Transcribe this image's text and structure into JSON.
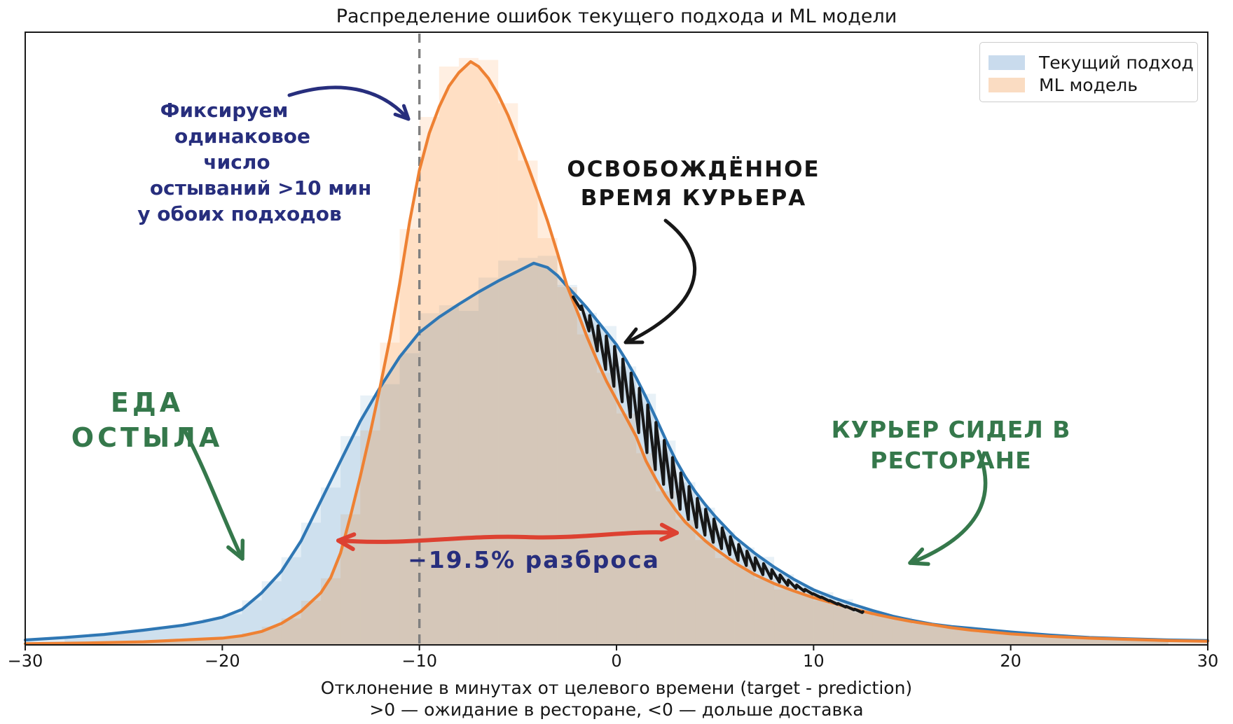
{
  "title": "Распределение ошибок текущего подхода и ML модели",
  "legend": {
    "items": [
      {
        "label": "Текущий подход",
        "swatch_color": "#c9dbed"
      },
      {
        "label": "ML модель",
        "swatch_color": "#fadcc2"
      }
    ]
  },
  "axes": {
    "x_tick_labels": [
      "−30",
      "−20",
      "−10",
      "0",
      "10",
      "20",
      "30"
    ],
    "x_tick_values": [
      -30,
      -20,
      -10,
      0,
      10,
      20,
      30
    ],
    "xlabel_line1": "Отклонение в минутах от целевого времени (target - prediction)",
    "xlabel_line2": ">0 — ожидание в ресторане, <0 — дольше доставка"
  },
  "annotations": {
    "fix_note": {
      "lines": [
        "Фиксируем",
        "одинаковое",
        "число",
        "остываний >10 мин",
        "у обоих подходов"
      ],
      "color": "#272e7d"
    },
    "freed_time": {
      "lines": [
        "ОСВОБОЖДЁННОЕ",
        "ВРЕМЯ КУРЬЕРА"
      ],
      "color": "#151515"
    },
    "food_cold": {
      "text": "ЕДА ОСТЫЛА",
      "color": "#35784b"
    },
    "courier_sat": {
      "text": "КУРЬЕР СИДЕЛ В РЕСТОРАНЕ",
      "color": "#35784b"
    },
    "spread": {
      "text": "−19.5% разброса",
      "color": "#272e7d"
    },
    "arrow_colors": {
      "navy": "#272e7d",
      "black": "#171717",
      "green": "#35784b",
      "red": "#dd4131"
    }
  },
  "chart_data": {
    "type": "histogram+kde",
    "title": "Распределение ошибок текущего подхода и ML модели",
    "xlabel": "Отклонение в минутах от целевого времени (target - prediction)",
    "x_range": [
      -30,
      30
    ],
    "y_scale": "relative density, 1.0 = top of plot area",
    "bin_width": 1,
    "grid": false,
    "legend_position": "upper right",
    "vline_x": -10,
    "vline_color": "#7f7f7f",
    "scribble_span": [
      -2.2,
      12.6
    ],
    "series": [
      {
        "name": "Текущий подход",
        "line_color": "#2f77b4",
        "fill_color": "rgba(31,119,180,0.13)",
        "bar_color": "rgba(31,119,180,0.10)",
        "points": [
          [
            -30,
            0.008
          ],
          [
            -28,
            0.012
          ],
          [
            -26,
            0.017
          ],
          [
            -24,
            0.024
          ],
          [
            -22,
            0.032
          ],
          [
            -21,
            0.038
          ],
          [
            -20,
            0.045
          ],
          [
            -19,
            0.058
          ],
          [
            -18,
            0.085
          ],
          [
            -17,
            0.12
          ],
          [
            -16,
            0.17
          ],
          [
            -15,
            0.235
          ],
          [
            -14,
            0.3
          ],
          [
            -13,
            0.365
          ],
          [
            -12,
            0.42
          ],
          [
            -11,
            0.47
          ],
          [
            -10,
            0.51
          ],
          [
            -9,
            0.535
          ],
          [
            -8,
            0.556
          ],
          [
            -7,
            0.576
          ],
          [
            -6,
            0.594
          ],
          [
            -5,
            0.61
          ],
          [
            -4.2,
            0.623
          ],
          [
            -3.5,
            0.616
          ],
          [
            -3,
            0.603
          ],
          [
            -2.5,
            0.585
          ],
          [
            -2,
            0.568
          ],
          [
            -1.5,
            0.55
          ],
          [
            -1,
            0.53
          ],
          [
            -0.5,
            0.51
          ],
          [
            0,
            0.49
          ],
          [
            0.5,
            0.464
          ],
          [
            1,
            0.436
          ],
          [
            1.5,
            0.404
          ],
          [
            2,
            0.37
          ],
          [
            2.5,
            0.335
          ],
          [
            3,
            0.302
          ],
          [
            3.5,
            0.274
          ],
          [
            4,
            0.25
          ],
          [
            4.5,
            0.229
          ],
          [
            5,
            0.21
          ],
          [
            6,
            0.176
          ],
          [
            7,
            0.15
          ],
          [
            8,
            0.127
          ],
          [
            9,
            0.107
          ],
          [
            10,
            0.09
          ],
          [
            11,
            0.077
          ],
          [
            12,
            0.066
          ],
          [
            13,
            0.056
          ],
          [
            14,
            0.047
          ],
          [
            15,
            0.04
          ],
          [
            16,
            0.034
          ],
          [
            17,
            0.03
          ],
          [
            18,
            0.027
          ],
          [
            19,
            0.024
          ],
          [
            20,
            0.021
          ],
          [
            22,
            0.016
          ],
          [
            24,
            0.012
          ],
          [
            26,
            0.01
          ],
          [
            28,
            0.008
          ],
          [
            30,
            0.007
          ]
        ]
      },
      {
        "name": "ML модель",
        "line_color": "#ee8133",
        "fill_color": "rgba(255,127,14,0.14)",
        "bar_color": "rgba(255,127,14,0.12)",
        "points": [
          [
            -30,
            0.002
          ],
          [
            -27,
            0.003
          ],
          [
            -24,
            0.005
          ],
          [
            -22,
            0.008
          ],
          [
            -20,
            0.011
          ],
          [
            -19,
            0.015
          ],
          [
            -18,
            0.022
          ],
          [
            -17,
            0.035
          ],
          [
            -16,
            0.055
          ],
          [
            -15,
            0.085
          ],
          [
            -14.5,
            0.11
          ],
          [
            -14,
            0.15
          ],
          [
            -13.5,
            0.21
          ],
          [
            -13,
            0.275
          ],
          [
            -12.5,
            0.345
          ],
          [
            -12,
            0.42
          ],
          [
            -11.5,
            0.5
          ],
          [
            -11,
            0.59
          ],
          [
            -10.5,
            0.69
          ],
          [
            -10,
            0.775
          ],
          [
            -9.5,
            0.835
          ],
          [
            -9,
            0.878
          ],
          [
            -8.5,
            0.912
          ],
          [
            -8,
            0.934
          ],
          [
            -7.4,
            0.952
          ],
          [
            -7,
            0.944
          ],
          [
            -6.5,
            0.925
          ],
          [
            -6,
            0.898
          ],
          [
            -5.5,
            0.864
          ],
          [
            -5,
            0.824
          ],
          [
            -4.5,
            0.782
          ],
          [
            -4,
            0.738
          ],
          [
            -3.5,
            0.692
          ],
          [
            -3,
            0.64
          ],
          [
            -2.5,
            0.585
          ],
          [
            -2,
            0.545
          ],
          [
            -1.5,
            0.503
          ],
          [
            -1,
            0.465
          ],
          [
            -0.5,
            0.43
          ],
          [
            0,
            0.4
          ],
          [
            0.5,
            0.37
          ],
          [
            1,
            0.34
          ],
          [
            1.5,
            0.3
          ],
          [
            2,
            0.27
          ],
          [
            2.5,
            0.243
          ],
          [
            3,
            0.22
          ],
          [
            3.5,
            0.2
          ],
          [
            4,
            0.185
          ],
          [
            4.5,
            0.17
          ],
          [
            5,
            0.157
          ],
          [
            6,
            0.134
          ],
          [
            7,
            0.115
          ],
          [
            8,
            0.1
          ],
          [
            9,
            0.088
          ],
          [
            10,
            0.077
          ],
          [
            11,
            0.068
          ],
          [
            12,
            0.059
          ],
          [
            13,
            0.051
          ],
          [
            14,
            0.044
          ],
          [
            15,
            0.038
          ],
          [
            16,
            0.033
          ],
          [
            17,
            0.028
          ],
          [
            18,
            0.024
          ],
          [
            19,
            0.021
          ],
          [
            20,
            0.018
          ],
          [
            22,
            0.014
          ],
          [
            24,
            0.011
          ],
          [
            26,
            0.009
          ],
          [
            28,
            0.007
          ],
          [
            30,
            0.006
          ]
        ]
      }
    ]
  }
}
